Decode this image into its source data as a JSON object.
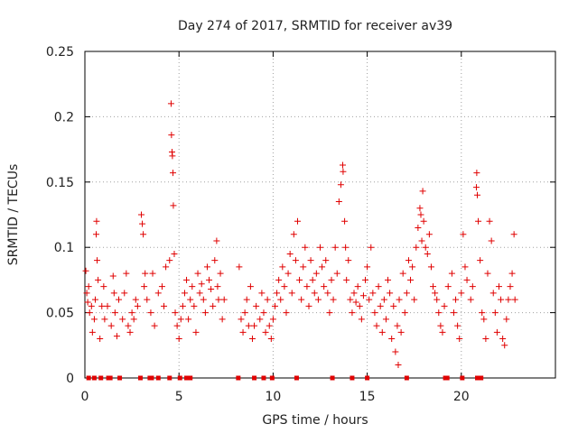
{
  "chart_data": {
    "type": "scatter",
    "title": "Day 274 of 2017, SRMTID for receiver av39",
    "xlabel": "GPS time / hours",
    "ylabel": "SRMTID / TECUs",
    "xlim": [
      0,
      25
    ],
    "ylim": [
      0,
      0.25
    ],
    "xticks": [
      0,
      5,
      10,
      15,
      20
    ],
    "xtick_labels": [
      "0",
      "5",
      "10",
      "15",
      "20"
    ],
    "yticks": [
      0,
      0.05,
      0.1,
      0.15,
      0.2,
      0.25
    ],
    "ytick_labels": [
      "0",
      "0.05",
      "0.1",
      "0.15",
      "0.2",
      "0.25"
    ],
    "grid": true,
    "marker": "+",
    "color": "#e00000",
    "zero_marker_hours": [
      0.2,
      0.5,
      0.85,
      1.25,
      1.35,
      1.85,
      2.95,
      3.45,
      3.55,
      3.9,
      4.5,
      5.05,
      5.4,
      5.5,
      5.6,
      8.15,
      9.0,
      9.5,
      9.95,
      11.25,
      13.15,
      14.2,
      15.0,
      17.1,
      19.15,
      19.25,
      20.05,
      20.85,
      21.05
    ],
    "series": [
      {
        "name": "SRMTID",
        "points": [
          [
            0.05,
            0.082
          ],
          [
            0.1,
            0.065
          ],
          [
            0.15,
            0.058
          ],
          [
            0.2,
            0.07
          ],
          [
            0.25,
            0.05
          ],
          [
            0.35,
            0.055
          ],
          [
            0.4,
            0.035
          ],
          [
            0.5,
            0.045
          ],
          [
            0.55,
            0.06
          ],
          [
            0.6,
            0.11
          ],
          [
            0.62,
            0.12
          ],
          [
            0.65,
            0.09
          ],
          [
            0.7,
            0.075
          ],
          [
            0.8,
            0.03
          ],
          [
            0.9,
            0.055
          ],
          [
            1.0,
            0.07
          ],
          [
            1.05,
            0.045
          ],
          [
            1.2,
            0.055
          ],
          [
            1.4,
            0.04
          ],
          [
            1.5,
            0.078
          ],
          [
            1.55,
            0.065
          ],
          [
            1.6,
            0.05
          ],
          [
            1.7,
            0.032
          ],
          [
            1.8,
            0.06
          ],
          [
            2.0,
            0.045
          ],
          [
            2.1,
            0.065
          ],
          [
            2.2,
            0.08
          ],
          [
            2.3,
            0.04
          ],
          [
            2.4,
            0.035
          ],
          [
            2.5,
            0.05
          ],
          [
            2.6,
            0.045
          ],
          [
            2.7,
            0.06
          ],
          [
            2.8,
            0.055
          ],
          [
            3.0,
            0.125
          ],
          [
            3.05,
            0.118
          ],
          [
            3.1,
            0.11
          ],
          [
            3.15,
            0.07
          ],
          [
            3.2,
            0.08
          ],
          [
            3.3,
            0.06
          ],
          [
            3.5,
            0.05
          ],
          [
            3.6,
            0.08
          ],
          [
            3.7,
            0.04
          ],
          [
            3.9,
            0.065
          ],
          [
            4.1,
            0.07
          ],
          [
            4.2,
            0.055
          ],
          [
            4.3,
            0.085
          ],
          [
            4.5,
            0.09
          ],
          [
            4.58,
            0.21
          ],
          [
            4.6,
            0.186
          ],
          [
            4.63,
            0.173
          ],
          [
            4.65,
            0.17
          ],
          [
            4.68,
            0.157
          ],
          [
            4.7,
            0.132
          ],
          [
            4.75,
            0.095
          ],
          [
            4.8,
            0.05
          ],
          [
            4.9,
            0.04
          ],
          [
            5.0,
            0.03
          ],
          [
            5.1,
            0.045
          ],
          [
            5.2,
            0.055
          ],
          [
            5.3,
            0.065
          ],
          [
            5.4,
            0.075
          ],
          [
            5.5,
            0.045
          ],
          [
            5.6,
            0.06
          ],
          [
            5.7,
            0.07
          ],
          [
            5.8,
            0.055
          ],
          [
            5.9,
            0.035
          ],
          [
            6.0,
            0.08
          ],
          [
            6.1,
            0.065
          ],
          [
            6.2,
            0.072
          ],
          [
            6.3,
            0.06
          ],
          [
            6.4,
            0.05
          ],
          [
            6.5,
            0.085
          ],
          [
            6.6,
            0.075
          ],
          [
            6.7,
            0.068
          ],
          [
            6.8,
            0.055
          ],
          [
            6.9,
            0.09
          ],
          [
            7.0,
            0.105
          ],
          [
            7.05,
            0.07
          ],
          [
            7.1,
            0.06
          ],
          [
            7.2,
            0.08
          ],
          [
            7.3,
            0.045
          ],
          [
            7.4,
            0.06
          ],
          [
            8.2,
            0.085
          ],
          [
            8.3,
            0.045
          ],
          [
            8.4,
            0.035
          ],
          [
            8.5,
            0.05
          ],
          [
            8.6,
            0.06
          ],
          [
            8.7,
            0.04
          ],
          [
            8.8,
            0.07
          ],
          [
            8.9,
            0.03
          ],
          [
            9.0,
            0.04
          ],
          [
            9.1,
            0.055
          ],
          [
            9.3,
            0.045
          ],
          [
            9.4,
            0.065
          ],
          [
            9.5,
            0.05
          ],
          [
            9.6,
            0.035
          ],
          [
            9.7,
            0.06
          ],
          [
            9.8,
            0.04
          ],
          [
            9.9,
            0.03
          ],
          [
            10.0,
            0.045
          ],
          [
            10.1,
            0.055
          ],
          [
            10.2,
            0.065
          ],
          [
            10.3,
            0.075
          ],
          [
            10.4,
            0.06
          ],
          [
            10.5,
            0.085
          ],
          [
            10.6,
            0.07
          ],
          [
            10.7,
            0.05
          ],
          [
            10.8,
            0.08
          ],
          [
            10.9,
            0.095
          ],
          [
            11.0,
            0.065
          ],
          [
            11.1,
            0.11
          ],
          [
            11.2,
            0.09
          ],
          [
            11.3,
            0.12
          ],
          [
            11.4,
            0.075
          ],
          [
            11.5,
            0.06
          ],
          [
            11.6,
            0.085
          ],
          [
            11.7,
            0.1
          ],
          [
            11.8,
            0.07
          ],
          [
            11.9,
            0.055
          ],
          [
            12.0,
            0.09
          ],
          [
            12.1,
            0.075
          ],
          [
            12.2,
            0.065
          ],
          [
            12.3,
            0.08
          ],
          [
            12.4,
            0.06
          ],
          [
            12.5,
            0.1
          ],
          [
            12.6,
            0.085
          ],
          [
            12.7,
            0.07
          ],
          [
            12.8,
            0.09
          ],
          [
            12.9,
            0.065
          ],
          [
            13.0,
            0.05
          ],
          [
            13.1,
            0.075
          ],
          [
            13.2,
            0.06
          ],
          [
            13.3,
            0.1
          ],
          [
            13.4,
            0.08
          ],
          [
            13.5,
            0.135
          ],
          [
            13.6,
            0.148
          ],
          [
            13.7,
            0.163
          ],
          [
            13.72,
            0.158
          ],
          [
            13.8,
            0.12
          ],
          [
            13.85,
            0.1
          ],
          [
            13.9,
            0.075
          ],
          [
            14.0,
            0.09
          ],
          [
            14.1,
            0.06
          ],
          [
            14.2,
            0.05
          ],
          [
            14.3,
            0.065
          ],
          [
            14.4,
            0.058
          ],
          [
            14.5,
            0.07
          ],
          [
            14.6,
            0.055
          ],
          [
            14.7,
            0.045
          ],
          [
            14.8,
            0.063
          ],
          [
            14.9,
            0.075
          ],
          [
            15.0,
            0.085
          ],
          [
            15.1,
            0.06
          ],
          [
            15.2,
            0.1
          ],
          [
            15.3,
            0.065
          ],
          [
            15.4,
            0.05
          ],
          [
            15.5,
            0.04
          ],
          [
            15.6,
            0.07
          ],
          [
            15.7,
            0.055
          ],
          [
            15.8,
            0.035
          ],
          [
            15.9,
            0.06
          ],
          [
            16.0,
            0.045
          ],
          [
            16.1,
            0.075
          ],
          [
            16.2,
            0.065
          ],
          [
            16.3,
            0.03
          ],
          [
            16.4,
            0.055
          ],
          [
            16.5,
            0.02
          ],
          [
            16.6,
            0.04
          ],
          [
            16.65,
            0.01
          ],
          [
            16.7,
            0.06
          ],
          [
            16.8,
            0.035
          ],
          [
            16.9,
            0.08
          ],
          [
            17.0,
            0.05
          ],
          [
            17.1,
            0.065
          ],
          [
            17.2,
            0.09
          ],
          [
            17.3,
            0.075
          ],
          [
            17.4,
            0.085
          ],
          [
            17.5,
            0.06
          ],
          [
            17.6,
            0.1
          ],
          [
            17.7,
            0.115
          ],
          [
            17.8,
            0.13
          ],
          [
            17.85,
            0.125
          ],
          [
            17.9,
            0.105
          ],
          [
            17.95,
            0.143
          ],
          [
            18.0,
            0.12
          ],
          [
            18.1,
            0.1
          ],
          [
            18.2,
            0.095
          ],
          [
            18.3,
            0.11
          ],
          [
            18.4,
            0.085
          ],
          [
            18.5,
            0.07
          ],
          [
            18.6,
            0.065
          ],
          [
            18.7,
            0.06
          ],
          [
            18.8,
            0.05
          ],
          [
            18.9,
            0.04
          ],
          [
            19.0,
            0.035
          ],
          [
            19.1,
            0.055
          ],
          [
            19.3,
            0.07
          ],
          [
            19.5,
            0.08
          ],
          [
            19.6,
            0.05
          ],
          [
            19.7,
            0.06
          ],
          [
            19.8,
            0.04
          ],
          [
            19.9,
            0.03
          ],
          [
            20.0,
            0.065
          ],
          [
            20.1,
            0.11
          ],
          [
            20.2,
            0.085
          ],
          [
            20.3,
            0.075
          ],
          [
            20.5,
            0.06
          ],
          [
            20.6,
            0.07
          ],
          [
            20.8,
            0.146
          ],
          [
            20.82,
            0.157
          ],
          [
            20.85,
            0.14
          ],
          [
            20.9,
            0.12
          ],
          [
            21.0,
            0.09
          ],
          [
            21.1,
            0.05
          ],
          [
            21.2,
            0.045
          ],
          [
            21.3,
            0.03
          ],
          [
            21.4,
            0.08
          ],
          [
            21.5,
            0.12
          ],
          [
            21.6,
            0.105
          ],
          [
            21.7,
            0.065
          ],
          [
            21.8,
            0.05
          ],
          [
            21.9,
            0.035
          ],
          [
            22.0,
            0.07
          ],
          [
            22.1,
            0.06
          ],
          [
            22.2,
            0.03
          ],
          [
            22.3,
            0.025
          ],
          [
            22.4,
            0.045
          ],
          [
            22.5,
            0.06
          ],
          [
            22.6,
            0.07
          ],
          [
            22.7,
            0.08
          ],
          [
            22.8,
            0.11
          ],
          [
            22.85,
            0.06
          ]
        ]
      }
    ]
  }
}
